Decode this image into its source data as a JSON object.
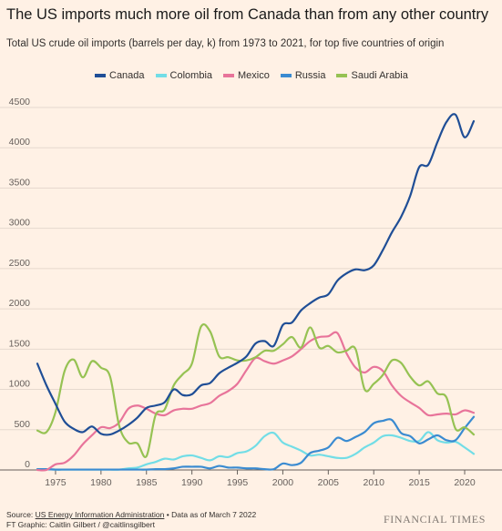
{
  "chart_data": {
    "type": "line",
    "title": "The US imports much more oil from Canada than from any other country",
    "subtitle": "Total US crude oil imports (barrels per day, k) from 1973 to 2021, for top five countries of origin",
    "xlabel": "",
    "ylabel": "",
    "xlim": [
      1973,
      2021
    ],
    "ylim": [
      0,
      4500
    ],
    "y_ticks": [
      0,
      500,
      1000,
      1500,
      2000,
      2500,
      3000,
      3500,
      4000,
      4500
    ],
    "x_ticks": [
      1975,
      1980,
      1985,
      1990,
      1995,
      2000,
      2005,
      2010,
      2015,
      2020
    ],
    "grid": "horizontal",
    "legend_position": "top",
    "x": [
      1973,
      1974,
      1975,
      1976,
      1977,
      1978,
      1979,
      1980,
      1981,
      1982,
      1983,
      1984,
      1985,
      1986,
      1987,
      1988,
      1989,
      1990,
      1991,
      1992,
      1993,
      1994,
      1995,
      1996,
      1997,
      1998,
      1999,
      2000,
      2001,
      2002,
      2003,
      2004,
      2005,
      2006,
      2007,
      2008,
      2009,
      2010,
      2011,
      2012,
      2013,
      2014,
      2015,
      2016,
      2017,
      2018,
      2019,
      2020,
      2021
    ],
    "series": [
      {
        "name": "Canada",
        "color": "#1f4e96",
        "values": [
          1320,
          1050,
          820,
          600,
          510,
          470,
          540,
          450,
          440,
          490,
          560,
          650,
          770,
          800,
          840,
          1000,
          930,
          940,
          1050,
          1080,
          1200,
          1270,
          1330,
          1410,
          1570,
          1600,
          1540,
          1800,
          1830,
          1980,
          2070,
          2140,
          2180,
          2350,
          2440,
          2490,
          2480,
          2540,
          2730,
          2950,
          3140,
          3400,
          3760,
          3790,
          4070,
          4320,
          4410,
          4130,
          4330
        ]
      },
      {
        "name": "Colombia",
        "color": "#72dde6",
        "values": [
          10,
          10,
          5,
          5,
          5,
          5,
          5,
          5,
          5,
          5,
          20,
          30,
          70,
          100,
          140,
          130,
          170,
          180,
          150,
          120,
          170,
          160,
          210,
          230,
          300,
          420,
          460,
          340,
          290,
          240,
          180,
          190,
          170,
          150,
          150,
          200,
          280,
          340,
          420,
          430,
          400,
          360,
          360,
          470,
          370,
          340,
          350,
          280,
          200
        ]
      },
      {
        "name": "Mexico",
        "color": "#e8749a",
        "values": [
          0,
          0,
          70,
          90,
          180,
          320,
          430,
          530,
          520,
          590,
          760,
          800,
          760,
          700,
          680,
          740,
          760,
          760,
          800,
          830,
          920,
          980,
          1070,
          1240,
          1390,
          1350,
          1320,
          1360,
          1410,
          1500,
          1600,
          1650,
          1660,
          1700,
          1450,
          1270,
          1210,
          1280,
          1230,
          1050,
          920,
          840,
          770,
          680,
          690,
          700,
          690,
          740,
          710
        ]
      },
      {
        "name": "Russia",
        "color": "#3a8bd1",
        "values": [
          10,
          10,
          5,
          5,
          5,
          5,
          5,
          5,
          5,
          5,
          5,
          5,
          5,
          10,
          10,
          20,
          40,
          40,
          40,
          20,
          50,
          30,
          30,
          20,
          20,
          10,
          10,
          80,
          60,
          90,
          210,
          240,
          280,
          400,
          360,
          410,
          470,
          580,
          610,
          620,
          460,
          420,
          330,
          380,
          430,
          370,
          370,
          520,
          660
        ]
      },
      {
        "name": "Saudi Arabia",
        "color": "#96c253",
        "values": [
          490,
          470,
          720,
          1230,
          1370,
          1150,
          1350,
          1270,
          1160,
          550,
          340,
          330,
          170,
          680,
          750,
          1050,
          1190,
          1320,
          1780,
          1720,
          1410,
          1400,
          1360,
          1360,
          1400,
          1480,
          1480,
          1560,
          1650,
          1520,
          1770,
          1520,
          1540,
          1460,
          1480,
          1500,
          1000,
          1070,
          1180,
          1360,
          1330,
          1160,
          1050,
          1100,
          950,
          900,
          510,
          530,
          440
        ]
      }
    ]
  },
  "footer": {
    "source_prefix": "Source: ",
    "source_link": "US Energy Information Administration",
    "source_suffix": " • Data as of March 7 2022",
    "credit": "FT Graphic: Caitlin Gilbert / @caitlinsgilbert",
    "logo": "FINANCIAL TIMES"
  }
}
